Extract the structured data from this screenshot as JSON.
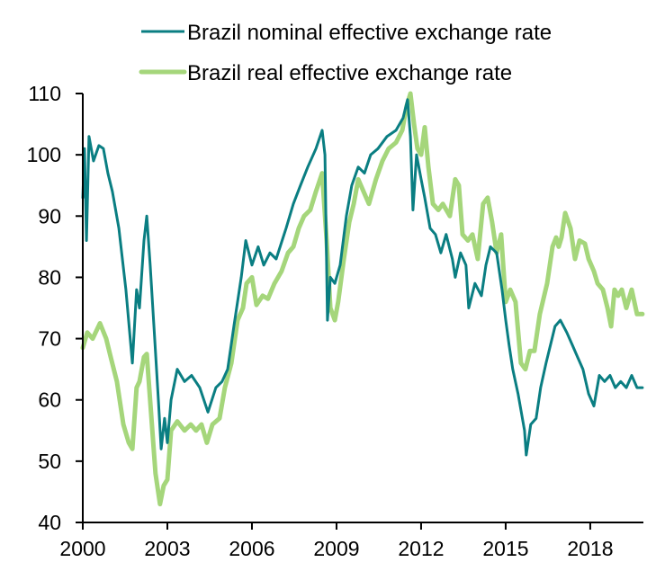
{
  "chart_data": {
    "type": "line",
    "title": "",
    "xlabel": "",
    "ylabel": "",
    "xlim": [
      2000,
      2019.9
    ],
    "ylim": [
      40,
      110
    ],
    "x_ticks": [
      2000,
      2003,
      2006,
      2009,
      2012,
      2015,
      2018
    ],
    "x_tick_labels": [
      "2000",
      "2003",
      "2006",
      "2009",
      "2012",
      "2015",
      "2018"
    ],
    "y_ticks": [
      40,
      50,
      60,
      70,
      80,
      90,
      100,
      110
    ],
    "y_tick_labels": [
      "40",
      "50",
      "60",
      "70",
      "80",
      "90",
      "100",
      "110"
    ],
    "grid": false,
    "legend_position": "top",
    "series": [
      {
        "name": "Brazil nominal effective exchange rate",
        "color": "#0A7E82",
        "points": [
          [
            2000.0,
            93
          ],
          [
            2000.06,
            101
          ],
          [
            2000.13,
            86
          ],
          [
            2000.22,
            103
          ],
          [
            2000.38,
            99
          ],
          [
            2000.57,
            101.5
          ],
          [
            2000.73,
            101
          ],
          [
            2000.89,
            97
          ],
          [
            2001.05,
            94
          ],
          [
            2001.28,
            88
          ],
          [
            2001.53,
            78
          ],
          [
            2001.72,
            68
          ],
          [
            2001.76,
            66
          ],
          [
            2001.91,
            78
          ],
          [
            2002.01,
            75
          ],
          [
            2002.17,
            86
          ],
          [
            2002.27,
            90
          ],
          [
            2002.39,
            82
          ],
          [
            2002.55,
            70
          ],
          [
            2002.68,
            60
          ],
          [
            2002.78,
            52
          ],
          [
            2002.9,
            57
          ],
          [
            2003.0,
            53
          ],
          [
            2003.13,
            60
          ],
          [
            2003.35,
            65
          ],
          [
            2003.61,
            63
          ],
          [
            2003.86,
            64
          ],
          [
            2004.15,
            62
          ],
          [
            2004.44,
            58
          ],
          [
            2004.72,
            62
          ],
          [
            2004.94,
            63
          ],
          [
            2005.14,
            65
          ],
          [
            2005.36,
            72
          ],
          [
            2005.62,
            80
          ],
          [
            2005.78,
            86
          ],
          [
            2006.0,
            82
          ],
          [
            2006.22,
            85
          ],
          [
            2006.42,
            82
          ],
          [
            2006.64,
            84
          ],
          [
            2006.86,
            83
          ],
          [
            2007.21,
            88
          ],
          [
            2007.47,
            92
          ],
          [
            2007.72,
            95
          ],
          [
            2007.98,
            98
          ],
          [
            2008.27,
            101
          ],
          [
            2008.49,
            104
          ],
          [
            2008.59,
            100
          ],
          [
            2008.68,
            73
          ],
          [
            2008.78,
            80
          ],
          [
            2008.94,
            79
          ],
          [
            2009.13,
            82
          ],
          [
            2009.35,
            90
          ],
          [
            2009.54,
            95
          ],
          [
            2009.77,
            98
          ],
          [
            2009.99,
            97
          ],
          [
            2010.21,
            100
          ],
          [
            2010.47,
            101
          ],
          [
            2010.79,
            103
          ],
          [
            2011.11,
            104
          ],
          [
            2011.36,
            106
          ],
          [
            2011.52,
            109
          ],
          [
            2011.62,
            103
          ],
          [
            2011.71,
            91
          ],
          [
            2011.84,
            100
          ],
          [
            2012.0,
            96
          ],
          [
            2012.13,
            93
          ],
          [
            2012.32,
            88
          ],
          [
            2012.51,
            87
          ],
          [
            2012.7,
            84
          ],
          [
            2012.89,
            87
          ],
          [
            2013.11,
            83
          ],
          [
            2013.21,
            80
          ],
          [
            2013.4,
            84
          ],
          [
            2013.59,
            82
          ],
          [
            2013.69,
            75
          ],
          [
            2013.91,
            79
          ],
          [
            2014.14,
            77
          ],
          [
            2014.3,
            82
          ],
          [
            2014.46,
            85
          ],
          [
            2014.68,
            84
          ],
          [
            2014.87,
            78
          ],
          [
            2015.0,
            73
          ],
          [
            2015.12,
            69
          ],
          [
            2015.25,
            65
          ],
          [
            2015.44,
            61
          ],
          [
            2015.67,
            55
          ],
          [
            2015.73,
            51
          ],
          [
            2015.89,
            56
          ],
          [
            2016.08,
            57
          ],
          [
            2016.24,
            62
          ],
          [
            2016.43,
            66
          ],
          [
            2016.59,
            69
          ],
          [
            2016.75,
            72
          ],
          [
            2016.94,
            73
          ],
          [
            2017.17,
            71
          ],
          [
            2017.36,
            69
          ],
          [
            2017.55,
            67
          ],
          [
            2017.74,
            65
          ],
          [
            2017.94,
            61
          ],
          [
            2018.13,
            59
          ],
          [
            2018.32,
            64
          ],
          [
            2018.51,
            63
          ],
          [
            2018.7,
            64
          ],
          [
            2018.89,
            62
          ],
          [
            2019.08,
            63
          ],
          [
            2019.28,
            62
          ],
          [
            2019.47,
            64
          ],
          [
            2019.66,
            62
          ],
          [
            2019.85,
            62
          ]
        ]
      },
      {
        "name": "Brazil real effective exchange rate",
        "color": "#A5D67B",
        "points": [
          [
            2000.0,
            68.5
          ],
          [
            2000.16,
            71
          ],
          [
            2000.35,
            70
          ],
          [
            2000.61,
            72.5
          ],
          [
            2000.83,
            70
          ],
          [
            2000.99,
            67
          ],
          [
            2001.21,
            63
          ],
          [
            2001.44,
            56
          ],
          [
            2001.63,
            53
          ],
          [
            2001.76,
            52
          ],
          [
            2001.91,
            62
          ],
          [
            2002.01,
            63
          ],
          [
            2002.17,
            67
          ],
          [
            2002.27,
            67.5
          ],
          [
            2002.42,
            58
          ],
          [
            2002.58,
            48
          ],
          [
            2002.74,
            43
          ],
          [
            2002.87,
            46
          ],
          [
            2003.0,
            47
          ],
          [
            2003.13,
            55
          ],
          [
            2003.35,
            56.5
          ],
          [
            2003.61,
            55
          ],
          [
            2003.83,
            56
          ],
          [
            2004.02,
            55
          ],
          [
            2004.21,
            56
          ],
          [
            2004.4,
            53
          ],
          [
            2004.6,
            56
          ],
          [
            2004.85,
            57
          ],
          [
            2005.04,
            62
          ],
          [
            2005.27,
            66
          ],
          [
            2005.49,
            73
          ],
          [
            2005.68,
            75
          ],
          [
            2005.81,
            79
          ],
          [
            2006.0,
            80
          ],
          [
            2006.16,
            75.5
          ],
          [
            2006.38,
            77
          ],
          [
            2006.57,
            76.5
          ],
          [
            2006.8,
            79
          ],
          [
            2007.05,
            81
          ],
          [
            2007.28,
            84
          ],
          [
            2007.47,
            85
          ],
          [
            2007.66,
            88
          ],
          [
            2007.85,
            90
          ],
          [
            2008.07,
            91
          ],
          [
            2008.27,
            94
          ],
          [
            2008.49,
            97
          ],
          [
            2008.65,
            86
          ],
          [
            2008.78,
            75
          ],
          [
            2008.94,
            73
          ],
          [
            2009.06,
            76
          ],
          [
            2009.26,
            83
          ],
          [
            2009.45,
            89
          ],
          [
            2009.61,
            92
          ],
          [
            2009.77,
            96
          ],
          [
            2009.96,
            94
          ],
          [
            2010.15,
            92
          ],
          [
            2010.4,
            96
          ],
          [
            2010.63,
            99
          ],
          [
            2010.85,
            101
          ],
          [
            2011.11,
            102
          ],
          [
            2011.33,
            104
          ],
          [
            2011.49,
            108
          ],
          [
            2011.62,
            110
          ],
          [
            2011.75,
            105
          ],
          [
            2011.87,
            101
          ],
          [
            2012.0,
            100
          ],
          [
            2012.13,
            104.5
          ],
          [
            2012.26,
            98
          ],
          [
            2012.42,
            92
          ],
          [
            2012.61,
            91
          ],
          [
            2012.77,
            92
          ],
          [
            2013.02,
            90
          ],
          [
            2013.21,
            96
          ],
          [
            2013.34,
            95
          ],
          [
            2013.47,
            87
          ],
          [
            2013.66,
            86
          ],
          [
            2013.82,
            87
          ],
          [
            2014.01,
            83
          ],
          [
            2014.2,
            92
          ],
          [
            2014.36,
            93
          ],
          [
            2014.52,
            89
          ],
          [
            2014.68,
            84
          ],
          [
            2014.84,
            87
          ],
          [
            2015.0,
            76
          ],
          [
            2015.16,
            78
          ],
          [
            2015.35,
            76
          ],
          [
            2015.54,
            66
          ],
          [
            2015.7,
            65
          ],
          [
            2015.86,
            68
          ],
          [
            2016.02,
            68
          ],
          [
            2016.21,
            74
          ],
          [
            2016.47,
            79
          ],
          [
            2016.66,
            85
          ],
          [
            2016.79,
            86.5
          ],
          [
            2016.88,
            85
          ],
          [
            2016.98,
            86.5
          ],
          [
            2017.11,
            90.5
          ],
          [
            2017.3,
            88
          ],
          [
            2017.46,
            83
          ],
          [
            2017.62,
            86
          ],
          [
            2017.81,
            85.5
          ],
          [
            2017.94,
            83
          ],
          [
            2018.13,
            81
          ],
          [
            2018.26,
            79
          ],
          [
            2018.45,
            78
          ],
          [
            2018.61,
            75
          ],
          [
            2018.74,
            72
          ],
          [
            2018.86,
            78
          ],
          [
            2018.99,
            77
          ],
          [
            2019.12,
            78
          ],
          [
            2019.28,
            75
          ],
          [
            2019.47,
            78
          ],
          [
            2019.66,
            74
          ],
          [
            2019.85,
            74
          ]
        ]
      }
    ]
  }
}
